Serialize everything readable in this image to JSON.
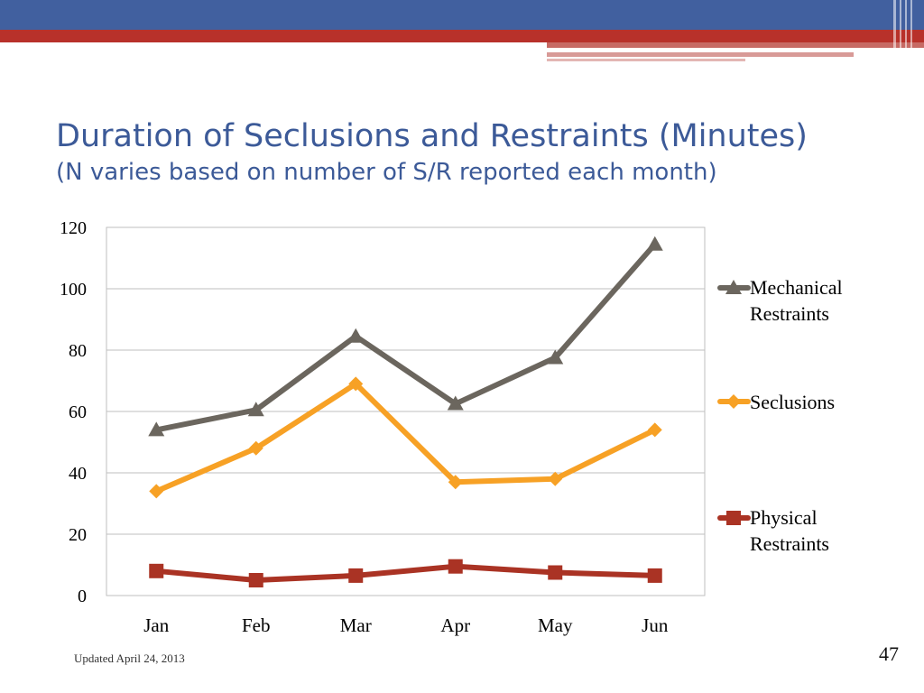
{
  "slide": {
    "title": "Duration of Seclusions and Restraints (Minutes)",
    "subtitle": "(N varies based on number of S/R reported each month)",
    "footer_note": "Updated April 24, 2013",
    "slide_number": "47"
  },
  "colors": {
    "title": "#3c5a98",
    "banner_blue": "#41609f",
    "banner_red": "#b8312a",
    "banner_pink": "#d89a97",
    "gridline": "#bfbfbf",
    "plot_border": "#bfbfbf"
  },
  "chart_data": {
    "type": "line",
    "categories": [
      "Jan",
      "Feb",
      "Mar",
      "Apr",
      "May",
      "Jun"
    ],
    "ylim": [
      0,
      120
    ],
    "yticks": [
      0,
      20,
      40,
      60,
      80,
      100,
      120
    ],
    "grid": true,
    "legend_position": "right",
    "series": [
      {
        "name": "Mechanical Restraints",
        "legend_lines": [
          "Mechanical",
          "Restraints"
        ],
        "color": "#6b665e",
        "marker": "triangle",
        "values": [
          54,
          60.5,
          84.5,
          62.5,
          77.5,
          114.5
        ]
      },
      {
        "name": "Seclusions",
        "legend_lines": [
          "Seclusions"
        ],
        "color": "#f7a125",
        "marker": "diamond",
        "values": [
          34,
          48,
          69,
          37,
          38,
          54
        ]
      },
      {
        "name": "Physical Restraints",
        "legend_lines": [
          "Physical",
          "Restraints"
        ],
        "color": "#aa3324",
        "marker": "square",
        "values": [
          8,
          5,
          6.5,
          9.5,
          7.5,
          6.5
        ]
      }
    ]
  }
}
